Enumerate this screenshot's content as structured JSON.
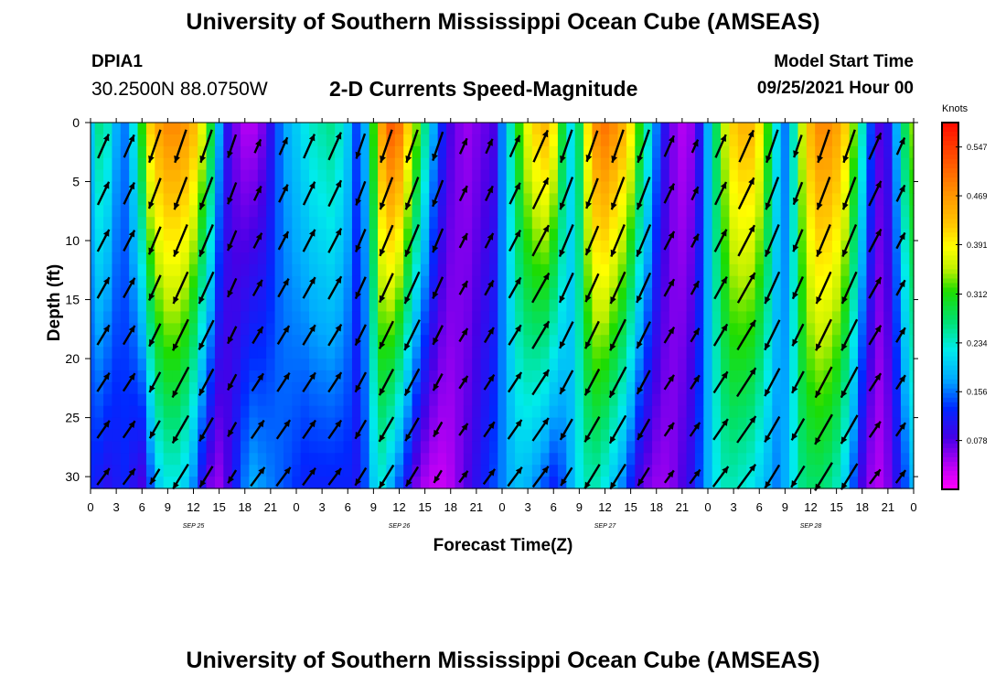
{
  "header": {
    "title": "University of Southern Mississippi Ocean Cube (AMSEAS)",
    "station": "DPIA1",
    "latlon": "30.2500N  88.0750W",
    "subtitle": "2-D Currents Speed-Magnitude",
    "model_start_label": "Model Start Time",
    "model_start_value": "09/25/2021 Hour 00"
  },
  "footer": {
    "title": "University of Southern Mississippi Ocean Cube (AMSEAS)"
  },
  "chart_data": {
    "type": "heatmap",
    "overlay": "current vectors (arrows)",
    "xlabel": "Forecast Time(Z)",
    "ylabel": "Depth (ft)",
    "xlim_hours": [
      0,
      96
    ],
    "ylim_ft": [
      0,
      31
    ],
    "y_ticks": [
      "0",
      "5",
      "10",
      "15",
      "20",
      "25",
      "30"
    ],
    "x_tick_labels": [
      "0",
      "3",
      "6",
      "9",
      "12",
      "15",
      "18",
      "21",
      "0",
      "3",
      "6",
      "9",
      "12",
      "15",
      "18",
      "21",
      "0",
      "3",
      "6",
      "9",
      "12",
      "15",
      "18",
      "21",
      "0",
      "3",
      "6",
      "9",
      "12",
      "15",
      "18",
      "21",
      "0"
    ],
    "date_labels": [
      {
        "label": "SEP 25",
        "hour": 12
      },
      {
        "label": "SEP 26",
        "hour": 36
      },
      {
        "label": "SEP 27",
        "hour": 60
      },
      {
        "label": "SEP 28",
        "hour": 84
      }
    ],
    "colorbar": {
      "unit": "Knots",
      "min": 0.0,
      "max": 0.586,
      "tick_labels": [
        "0.078",
        "0.156",
        "0.234",
        "0.312",
        "0.391",
        "0.469",
        "0.547"
      ],
      "tick_values": [
        0.078,
        0.156,
        0.234,
        0.312,
        0.391,
        0.469,
        0.547
      ]
    },
    "speed_profile_hourly_kn": {
      "surface": [
        0.2,
        0.26,
        0.24,
        0.18,
        0.16,
        0.22,
        0.32,
        0.42,
        0.46,
        0.48,
        0.48,
        0.47,
        0.44,
        0.38,
        0.3,
        0.18,
        0.1,
        0.06,
        0.04,
        0.04,
        0.06,
        0.1,
        0.15,
        0.18,
        0.2,
        0.22,
        0.24,
        0.25,
        0.26,
        0.24,
        0.2,
        0.14,
        0.18,
        0.32,
        0.46,
        0.52,
        0.5,
        0.42,
        0.34,
        0.26,
        0.18,
        0.12,
        0.08,
        0.06,
        0.05,
        0.06,
        0.07,
        0.08,
        0.16,
        0.24,
        0.32,
        0.38,
        0.42,
        0.44,
        0.4,
        0.3,
        0.22,
        0.28,
        0.4,
        0.48,
        0.5,
        0.48,
        0.45,
        0.4,
        0.32,
        0.24,
        0.16,
        0.1,
        0.06,
        0.04,
        0.05,
        0.1,
        0.18,
        0.28,
        0.36,
        0.42,
        0.44,
        0.44,
        0.4,
        0.32,
        0.22,
        0.16,
        0.24,
        0.36,
        0.44,
        0.48,
        0.48,
        0.46,
        0.42,
        0.34,
        0.24,
        0.14,
        0.08,
        0.1,
        0.18,
        0.28,
        0.34
      ],
      "bottom": [
        0.12,
        0.11,
        0.1,
        0.11,
        0.12,
        0.1,
        0.08,
        0.14,
        0.2,
        0.22,
        0.22,
        0.2,
        0.16,
        0.1,
        0.06,
        0.05,
        0.08,
        0.12,
        0.16,
        0.18,
        0.17,
        0.16,
        0.15,
        0.14,
        0.13,
        0.12,
        0.12,
        0.12,
        0.12,
        0.12,
        0.12,
        0.11,
        0.14,
        0.2,
        0.22,
        0.18,
        0.14,
        0.1,
        0.06,
        0.04,
        0.03,
        0.03,
        0.04,
        0.06,
        0.08,
        0.1,
        0.12,
        0.14,
        0.16,
        0.18,
        0.19,
        0.18,
        0.16,
        0.14,
        0.12,
        0.14,
        0.18,
        0.22,
        0.24,
        0.24,
        0.22,
        0.19,
        0.16,
        0.12,
        0.08,
        0.06,
        0.05,
        0.05,
        0.06,
        0.08,
        0.1,
        0.14,
        0.18,
        0.22,
        0.24,
        0.24,
        0.23,
        0.22,
        0.2,
        0.18,
        0.16,
        0.18,
        0.22,
        0.26,
        0.27,
        0.27,
        0.26,
        0.24,
        0.2,
        0.14,
        0.08,
        0.05,
        0.04,
        0.06,
        0.1,
        0.14,
        0.18
      ]
    }
  }
}
